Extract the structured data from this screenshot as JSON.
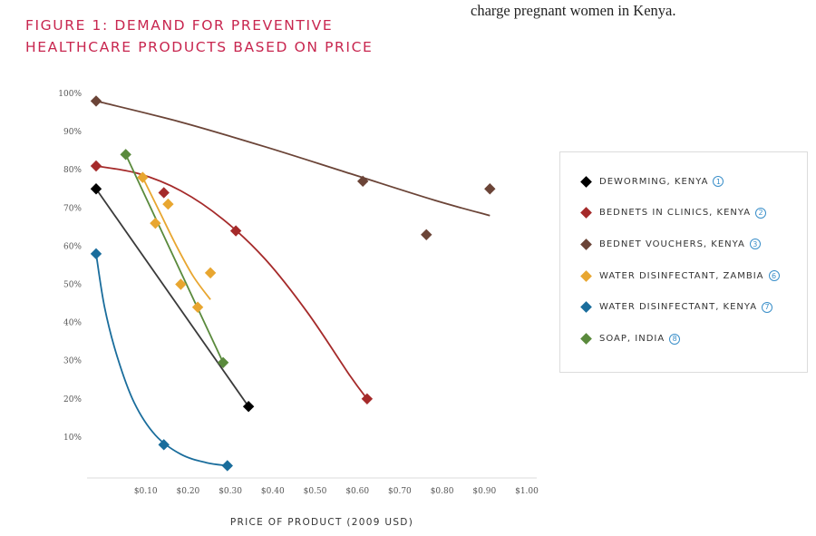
{
  "page": {
    "body_text_line": "charge pregnant women in Kenya."
  },
  "figure": {
    "title_line1": "FIGURE 1: DEMAND FOR PREVENTIVE",
    "title_line2": "HEALTHCARE PRODUCTS BASED ON PRICE"
  },
  "colors": {
    "title": "#c8264f",
    "reference_circle": "#3a8fc9"
  },
  "chart_data": {
    "type": "scatter",
    "title": "Demand for preventive healthcare products based on price",
    "xlabel": "PRICE OF PRODUCT (2009 USD)",
    "ylabel": "",
    "xlim": [
      0,
      1.05
    ],
    "ylim": [
      0,
      100
    ],
    "grid": false,
    "x_ticks": [
      0.1,
      0.2,
      0.3,
      0.4,
      0.5,
      0.6,
      0.7,
      0.8,
      0.9,
      1.0
    ],
    "x_tick_labels": [
      "$0.10",
      "$0.20",
      "$0.30",
      "$0.40",
      "$0.50",
      "$0.60",
      "$0.70",
      "$0.80",
      "$0.90",
      "$1.00"
    ],
    "y_ticks": [
      10,
      20,
      30,
      40,
      50,
      60,
      70,
      80,
      90,
      100
    ],
    "y_tick_labels": [
      "10%",
      "20%",
      "30%",
      "40%",
      "50%",
      "60%",
      "70%",
      "80%",
      "90%",
      "100%"
    ],
    "legend_position": "right",
    "series": [
      {
        "name": "DEWORMING, KENYA",
        "ref": "1",
        "color": "#000000",
        "points": [
          [
            0.0,
            75
          ],
          [
            0.36,
            18
          ]
        ],
        "trend": [
          [
            0.0,
            75
          ],
          [
            0.36,
            18
          ]
        ]
      },
      {
        "name": "BEDNETS IN CLINICS, KENYA",
        "ref": "2",
        "color": "#a52a2a",
        "points": [
          [
            0.0,
            81
          ],
          [
            0.16,
            74
          ],
          [
            0.33,
            64
          ],
          [
            0.64,
            20
          ]
        ],
        "trend": [
          [
            0.0,
            81
          ],
          [
            0.1,
            79
          ],
          [
            0.2,
            74.5
          ],
          [
            0.3,
            67
          ],
          [
            0.4,
            56.5
          ],
          [
            0.5,
            42.5
          ],
          [
            0.6,
            26
          ],
          [
            0.64,
            20
          ]
        ]
      },
      {
        "name": "BEDNET VOUCHERS, KENYA",
        "ref": "3",
        "color": "#6b4437",
        "points": [
          [
            0.0,
            98
          ],
          [
            0.63,
            77
          ],
          [
            0.78,
            63
          ],
          [
            0.93,
            75
          ]
        ],
        "trend": [
          [
            0.0,
            98
          ],
          [
            0.2,
            92.5
          ],
          [
            0.4,
            86
          ],
          [
            0.6,
            79
          ],
          [
            0.8,
            72
          ],
          [
            0.93,
            68
          ]
        ]
      },
      {
        "name": "WATER DISINFECTANT, ZAMBIA",
        "ref": "6",
        "color": "#e8a630",
        "points": [
          [
            0.11,
            78
          ],
          [
            0.17,
            71
          ],
          [
            0.14,
            66
          ],
          [
            0.2,
            50
          ],
          [
            0.24,
            44
          ],
          [
            0.27,
            53
          ]
        ],
        "trend": [
          [
            0.11,
            78
          ],
          [
            0.15,
            69
          ],
          [
            0.19,
            60
          ],
          [
            0.23,
            52
          ],
          [
            0.27,
            46
          ]
        ]
      },
      {
        "name": "WATER DISINFECTANT, KENYA",
        "ref": "7",
        "color": "#1a6d9c",
        "points": [
          [
            0.0,
            58
          ],
          [
            0.16,
            8
          ],
          [
            0.31,
            2.5
          ]
        ],
        "trend": [
          [
            0.0,
            58
          ],
          [
            0.02,
            44
          ],
          [
            0.05,
            31
          ],
          [
            0.09,
            19
          ],
          [
            0.14,
            10.5
          ],
          [
            0.2,
            5.5
          ],
          [
            0.26,
            3.3
          ],
          [
            0.31,
            2.5
          ]
        ]
      },
      {
        "name": "SOAP, INDIA",
        "ref": "8",
        "color": "#5a8a3c",
        "points": [
          [
            0.07,
            84
          ],
          [
            0.3,
            29.5
          ]
        ],
        "trend": [
          [
            0.07,
            84
          ],
          [
            0.3,
            29.5
          ]
        ]
      }
    ]
  }
}
